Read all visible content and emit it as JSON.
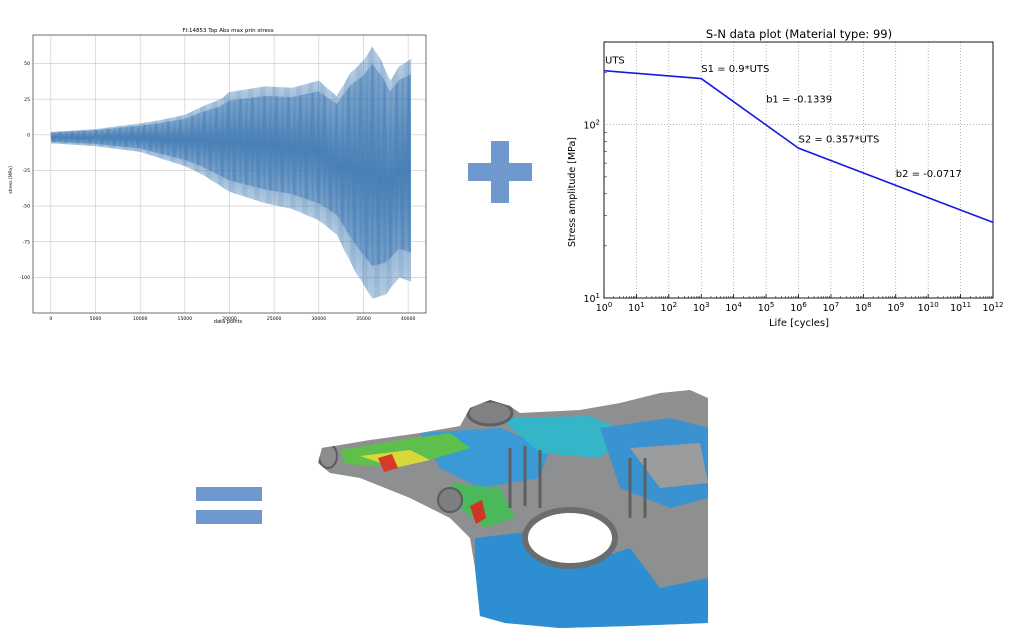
{
  "colors": {
    "operator": "#6f99cc",
    "signal": "#3d78b2",
    "sn_line": "#1919e6",
    "grid": "#c8c8c8"
  },
  "operators": {
    "plus_icon": "plus-icon",
    "equals_icon": "equals-icon"
  },
  "chart_data": [
    {
      "type": "line",
      "title": "FI:14853 Top Abs max prin stress",
      "xlabel": "data points",
      "ylabel": "stress [MPa]",
      "xlim": [
        -2000,
        42000
      ],
      "ylim": [
        -125,
        70
      ],
      "xticks": [
        0,
        5000,
        10000,
        15000,
        20000,
        25000,
        30000,
        35000,
        40000
      ],
      "yticks": [
        50,
        25,
        0,
        -25,
        -50,
        -75,
        -100
      ],
      "grid": true,
      "series": [
        {
          "envelope_upper": [
            {
              "x": 0,
              "y": 2
            },
            {
              "x": 5000,
              "y": 4
            },
            {
              "x": 10000,
              "y": 8
            },
            {
              "x": 12000,
              "y": 10
            },
            {
              "x": 15000,
              "y": 14
            },
            {
              "x": 17000,
              "y": 20
            },
            {
              "x": 19000,
              "y": 25
            },
            {
              "x": 20000,
              "y": 30
            },
            {
              "x": 24000,
              "y": 34
            },
            {
              "x": 27000,
              "y": 33
            },
            {
              "x": 30000,
              "y": 38
            },
            {
              "x": 32000,
              "y": 27
            },
            {
              "x": 33500,
              "y": 43
            },
            {
              "x": 35000,
              "y": 52
            },
            {
              "x": 36000,
              "y": 62
            },
            {
              "x": 37000,
              "y": 52
            },
            {
              "x": 38000,
              "y": 38
            },
            {
              "x": 39000,
              "y": 48
            },
            {
              "x": 40300,
              "y": 53
            }
          ],
          "envelope_lower": [
            {
              "x": 0,
              "y": -6
            },
            {
              "x": 5000,
              "y": -8
            },
            {
              "x": 10000,
              "y": -12
            },
            {
              "x": 12000,
              "y": -16
            },
            {
              "x": 15000,
              "y": -22
            },
            {
              "x": 17000,
              "y": -28
            },
            {
              "x": 20000,
              "y": -40
            },
            {
              "x": 24000,
              "y": -48
            },
            {
              "x": 27000,
              "y": -52
            },
            {
              "x": 30000,
              "y": -60
            },
            {
              "x": 32000,
              "y": -70
            },
            {
              "x": 34000,
              "y": -95
            },
            {
              "x": 36000,
              "y": -115
            },
            {
              "x": 37500,
              "y": -112
            },
            {
              "x": 39000,
              "y": -100
            },
            {
              "x": 40300,
              "y": -103
            }
          ]
        }
      ]
    },
    {
      "type": "line",
      "title": "S-N data plot (Material type: 99)",
      "xlabel": "Life [cycles]",
      "ylabel": "Stress amplitude [MPa]",
      "xscale": "log",
      "yscale": "log",
      "xlim": [
        1,
        1000000000000.0
      ],
      "ylim": [
        10,
        300
      ],
      "xtick_exponents": [
        0,
        1,
        2,
        3,
        4,
        5,
        6,
        7,
        8,
        9,
        10,
        11,
        12
      ],
      "xtick_base": "10",
      "yticks": [
        {
          "value": 100,
          "base": "10",
          "exp": "2"
        },
        {
          "value": 10,
          "base": "10",
          "exp": "1"
        }
      ],
      "grid": true,
      "series": [
        {
          "x": [
            1,
            1000,
            1000000,
            1000000000000
          ],
          "y": [
            205,
            184.5,
            73.2,
            27.3
          ]
        }
      ],
      "annotations": [
        {
          "text": "UTS",
          "x": 1,
          "y": 235
        },
        {
          "text": "S1 = 0.9*UTS",
          "x": 1000,
          "y": 210
        },
        {
          "text": "b1 = -0.1339",
          "x": 100000,
          "y": 140
        },
        {
          "text": "S2 = 0.357*UTS",
          "x": 1000000,
          "y": 82
        },
        {
          "text": "b2 = -0.0717",
          "x": 1000000000,
          "y": 52
        }
      ]
    }
  ],
  "result": {
    "name": "fatigue-damage-contour-model"
  }
}
